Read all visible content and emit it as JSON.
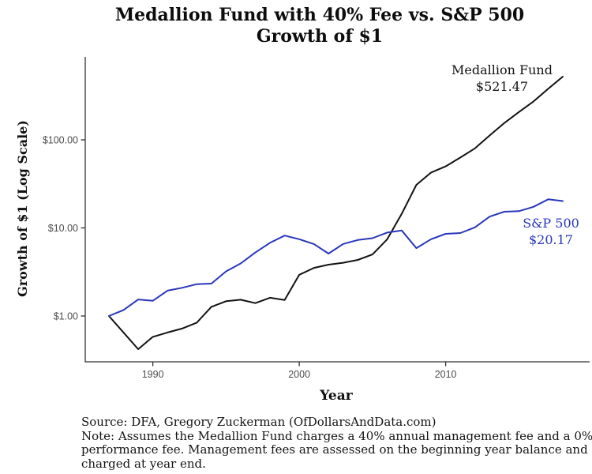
{
  "title": {
    "line1": "Medallion Fund with 40% Fee vs. S&P 500",
    "line2": "Growth of $1"
  },
  "axes": {
    "x_title": "Year",
    "y_title": "Growth of $1 (Log Scale)",
    "x_ticks": [
      {
        "value": 1990,
        "label": "1990"
      },
      {
        "value": 2000,
        "label": "2000"
      },
      {
        "value": 2010,
        "label": "2010"
      }
    ],
    "y_ticks": [
      {
        "value": 1,
        "label": "$1.00"
      },
      {
        "value": 10,
        "label": "$10.00"
      },
      {
        "value": 100,
        "label": "$100.00"
      }
    ]
  },
  "annotations": {
    "medallion": {
      "line1": "Medallion Fund",
      "line2": "$521.47"
    },
    "sp500": {
      "line1": "S&P 500",
      "line2": "$20.17"
    }
  },
  "footer": {
    "lines": [
      "Source: DFA, Gregory Zuckerman (OfDollarsAndData.com)",
      "Note: Assumes the Medallion Fund charges a 40% annual management fee and a 0% annual",
      "performance fee. Management fees are assessed on the beginning year balance and",
      "charged at year end."
    ]
  },
  "colors": {
    "medallion_line": "#121212",
    "sp500_line": "#2936bb",
    "axis": "#333333",
    "tick_label": "#4d4d4d"
  },
  "chart_data": {
    "type": "line",
    "title": "Medallion Fund with 40% Fee vs. S&P 500 — Growth of $1",
    "xlabel": "Year",
    "ylabel": "Growth of $1 (Log Scale)",
    "y_scale": "log10",
    "xlim": [
      1985.4,
      2019.9
    ],
    "ylim": [
      0.38,
      750
    ],
    "grid": false,
    "legend": "inline-annotations",
    "x": [
      1987,
      1988,
      1989,
      1990,
      1991,
      1992,
      1993,
      1994,
      1995,
      1996,
      1997,
      1998,
      1999,
      2000,
      2001,
      2002,
      2003,
      2004,
      2005,
      2006,
      2007,
      2008,
      2009,
      2010,
      2011,
      2012,
      2013,
      2014,
      2015,
      2016,
      2017,
      2018
    ],
    "series": [
      {
        "name": "Medallion Fund",
        "color": "#121212",
        "end_label": "$521.47",
        "values": [
          1.0,
          0.65,
          0.42,
          0.58,
          0.65,
          0.72,
          0.84,
          1.27,
          1.47,
          1.53,
          1.4,
          1.61,
          1.52,
          2.93,
          3.52,
          3.83,
          4.02,
          4.33,
          5.0,
          7.4,
          14.5,
          30.8,
          42.5,
          50.0,
          63.0,
          80.0,
          112.0,
          155.0,
          207.0,
          273.0,
          380.0,
          521.47
        ]
      },
      {
        "name": "S&P 500",
        "color": "#2936bb",
        "end_label": "$20.17",
        "values": [
          1.0,
          1.17,
          1.54,
          1.49,
          1.94,
          2.09,
          2.3,
          2.33,
          3.21,
          3.95,
          5.26,
          6.77,
          8.19,
          7.44,
          6.56,
          5.11,
          6.58,
          7.29,
          7.65,
          8.86,
          9.35,
          5.89,
          7.45,
          8.57,
          8.75,
          10.15,
          13.44,
          15.28,
          15.5,
          17.36,
          21.14,
          20.17
        ]
      }
    ]
  }
}
